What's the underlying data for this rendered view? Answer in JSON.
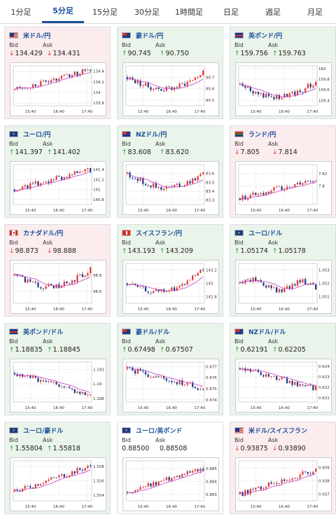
{
  "tabs": [
    "1分足",
    "5分足",
    "15分足",
    "30分足",
    "1時間足",
    "日足",
    "週足",
    "月足"
  ],
  "active_tab": 1,
  "labels": {
    "bid": "Bid",
    "ask": "Ask"
  },
  "colors": {
    "up_bg": "#eaf4ea",
    "down_bg": "#fbecee",
    "candle_up": "#e53935",
    "candle_down": "#1e3a8a",
    "ma": "#c040c0",
    "arrow_up": "#2a9a3a",
    "arrow_down": "#dd3333"
  },
  "cards": [
    {
      "pair": "米ドル/円",
      "flag": "us",
      "dir": "down",
      "bid": "134.429",
      "ask": "134.431",
      "bid_dir": "down",
      "ask_dir": "down",
      "chart": {
        "yticks": [
          "134.4",
          "134.2",
          "134",
          "133.8"
        ],
        "xticks": [
          "15:40",
          "16:40",
          "17:40"
        ],
        "ylim": [
          133.75,
          134.5
        ],
        "start": 134.05,
        "end": 134.43,
        "trend": "up"
      }
    },
    {
      "pair": "豪ドル/円",
      "flag": "au",
      "dir": "up",
      "bid": "90.745",
      "ask": "90.750",
      "bid_dir": "up",
      "ask_dir": "up",
      "chart": {
        "yticks": [
          "90.7",
          "90.6",
          "90.5"
        ],
        "xticks": [
          "15:40",
          "16:40",
          "17:40"
        ],
        "ylim": [
          90.45,
          90.8
        ],
        "start": 90.7,
        "end": 90.74,
        "trend": "dip"
      }
    },
    {
      "pair": "英ポンド/円",
      "flag": "gb",
      "dir": "up",
      "bid": "159.756",
      "ask": "159.763",
      "bid_dir": "up",
      "ask_dir": "up",
      "chart": {
        "yticks": [
          "160",
          "159.8",
          "159.6",
          "159.4"
        ],
        "xticks": [
          "15:40",
          "16:40",
          "17:40"
        ],
        "ylim": [
          159.3,
          160.05
        ],
        "start": 159.7,
        "end": 159.75,
        "trend": "dip"
      }
    },
    {
      "pair": "ユーロ/円",
      "flag": "eu",
      "dir": "up",
      "bid": "141.397",
      "ask": "141.402",
      "bid_dir": "up",
      "ask_dir": "up",
      "chart": {
        "yticks": [
          "141.4",
          "141.2",
          "141",
          "140.8"
        ],
        "xticks": [
          "15:40",
          "16:40",
          "17:40"
        ],
        "ylim": [
          140.7,
          141.5
        ],
        "start": 141.0,
        "end": 141.4,
        "trend": "up"
      }
    },
    {
      "pair": "NZドル/円",
      "flag": "nz",
      "dir": "up",
      "bid": "83.608",
      "ask": "83.620",
      "bid_dir": "up",
      "ask_dir": "up",
      "chart": {
        "yticks": [
          "83.6",
          "83.5",
          "83.4",
          "83.3"
        ],
        "xticks": [
          "15:40",
          "16:40",
          "17:40"
        ],
        "ylim": [
          83.25,
          83.7
        ],
        "start": 83.6,
        "end": 83.6,
        "trend": "dip"
      }
    },
    {
      "pair": "ランド/円",
      "flag": "za",
      "dir": "down",
      "bid": "7.805",
      "ask": "7.814",
      "bid_dir": "down",
      "ask_dir": "down",
      "chart": {
        "yticks": [
          "7.82",
          "7.8"
        ],
        "xticks": [
          "15:40",
          "16:40",
          "17:40"
        ],
        "ylim": [
          7.77,
          7.835
        ],
        "start": 7.78,
        "end": 7.81,
        "trend": "up"
      }
    },
    {
      "pair": "カナダドル/円",
      "flag": "ca",
      "dir": "down",
      "bid": "98.873",
      "ask": "98.888",
      "bid_dir": "down",
      "ask_dir": "down",
      "chart": {
        "yticks": [
          "98.8",
          "98.6"
        ],
        "xticks": [
          "15:40",
          "16:40",
          "17:40"
        ],
        "ylim": [
          98.45,
          98.95
        ],
        "start": 98.8,
        "end": 98.87,
        "trend": "dip"
      }
    },
    {
      "pair": "スイスフラン/円",
      "flag": "ch",
      "dir": "up",
      "bid": "143.193",
      "ask": "143.209",
      "bid_dir": "up",
      "ask_dir": "up",
      "chart": {
        "yticks": [
          "143.2",
          "143",
          "142.8"
        ],
        "xticks": [
          "15:40",
          "16:40",
          "17:40"
        ],
        "ylim": [
          142.7,
          143.3
        ],
        "start": 143.0,
        "end": 143.19,
        "trend": "dip"
      }
    },
    {
      "pair": "ユーロ/ドル",
      "flag": "eu",
      "dir": "up",
      "bid": "1.05174",
      "ask": "1.05178",
      "bid_dir": "up",
      "ask_dir": "up",
      "chart": {
        "yticks": [
          "1.053",
          "1.052",
          "1.051"
        ],
        "xticks": [
          "15:40",
          "16:40",
          "17:40"
        ],
        "ylim": [
          1.0505,
          1.0535
        ],
        "start": 1.052,
        "end": 1.0517,
        "trend": "flat"
      }
    },
    {
      "pair": "英ポンド/ドル",
      "flag": "gb",
      "dir": "up",
      "bid": "1.18835",
      "ask": "1.18845",
      "bid_dir": "up",
      "ask_dir": "up",
      "chart": {
        "yticks": [
          "1.192",
          "1.19",
          "1.188"
        ],
        "xticks": [
          "15:40",
          "16:40",
          "17:40"
        ],
        "ylim": [
          1.1875,
          1.193
        ],
        "start": 1.1915,
        "end": 1.1884,
        "trend": "down"
      }
    },
    {
      "pair": "豪ドル/ドル",
      "flag": "au",
      "dir": "up",
      "bid": "0.67498",
      "ask": "0.67507",
      "bid_dir": "up",
      "ask_dir": "up",
      "chart": {
        "yticks": [
          "0.677",
          "0.676",
          "0.675",
          "0.674"
        ],
        "xticks": [
          "15:40",
          "16:40",
          "17:40"
        ],
        "ylim": [
          0.6738,
          0.6774
        ],
        "start": 0.6768,
        "end": 0.675,
        "trend": "down"
      }
    },
    {
      "pair": "NZドル/ドル",
      "flag": "nz",
      "dir": "up",
      "bid": "0.62191",
      "ask": "0.62205",
      "bid_dir": "up",
      "ask_dir": "up",
      "chart": {
        "yticks": [
          "0.624",
          "0.623",
          "0.622",
          "0.621"
        ],
        "xticks": [
          "15:40",
          "16:40",
          "17:40"
        ],
        "ylim": [
          0.6206,
          0.6244
        ],
        "start": 0.6238,
        "end": 0.6219,
        "trend": "down"
      }
    },
    {
      "pair": "ユーロ/豪ドル",
      "flag": "eu",
      "dir": "up",
      "bid": "1.55804",
      "ask": "1.55818",
      "bid_dir": "up",
      "ask_dir": "up",
      "chart": {
        "yticks": [
          "1.558",
          "1.556",
          "1.554"
        ],
        "xticks": [
          "15:40",
          "16:40",
          "17:40"
        ],
        "ylim": [
          1.5532,
          1.5588
        ],
        "start": 1.5545,
        "end": 1.558,
        "trend": "up"
      }
    },
    {
      "pair": "ユーロ/英ポンド",
      "flag": "eu",
      "dir": "flat",
      "bid": "0.88500",
      "ask": "0.88508",
      "bid_dir": "none",
      "ask_dir": "none",
      "chart": {
        "yticks": [
          "0.885",
          "0.884",
          "0.883"
        ],
        "xticks": [
          "15:40",
          "16:40",
          "17:40"
        ],
        "ylim": [
          0.8825,
          0.8856
        ],
        "start": 0.8832,
        "end": 0.885,
        "trend": "up"
      }
    },
    {
      "pair": "米ドル/スイスフラン",
      "flag": "us",
      "dir": "down",
      "bid": "0.93875",
      "ask": "0.93890",
      "bid_dir": "down",
      "ask_dir": "down",
      "chart": {
        "yticks": [
          "0.939",
          "0.938",
          "0.937"
        ],
        "xticks": [
          "15:40",
          "16:40",
          "17:40"
        ],
        "ylim": [
          0.9365,
          0.9395
        ],
        "start": 0.937,
        "end": 0.9388,
        "trend": "up"
      }
    }
  ]
}
